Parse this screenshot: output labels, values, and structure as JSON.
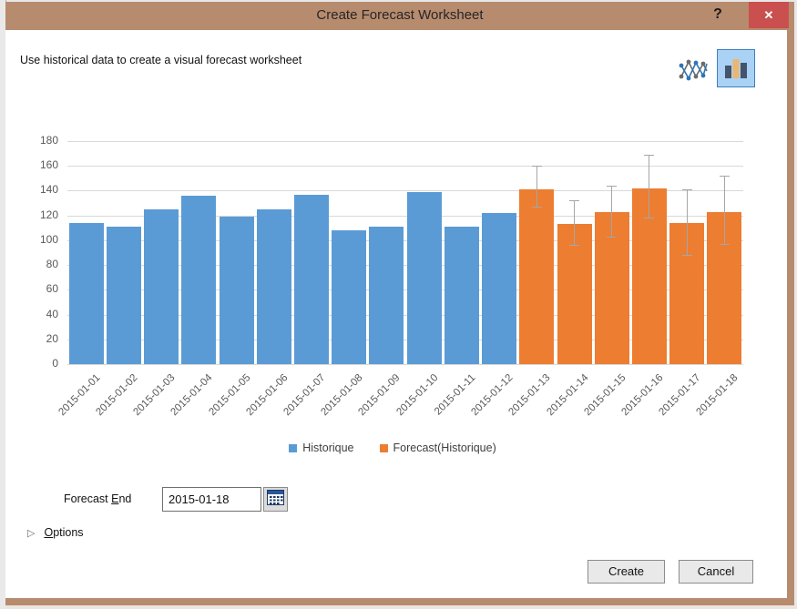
{
  "window": {
    "title": "Create Forecast Worksheet",
    "titlebar_color": "#b78b6e",
    "close_color": "#c9504e"
  },
  "icons": {
    "help": "?",
    "close": "✕",
    "expander": "▷"
  },
  "subtitle": "Use historical data to create a visual forecast worksheet",
  "chart_data": {
    "type": "bar",
    "title": "",
    "categories": [
      "2015-01-01",
      "2015-01-02",
      "2015-01-03",
      "2015-01-04",
      "2015-01-05",
      "2015-01-06",
      "2015-01-07",
      "2015-01-08",
      "2015-01-09",
      "2015-01-10",
      "2015-01-11",
      "2015-01-12",
      "2015-01-13",
      "2015-01-14",
      "2015-01-15",
      "2015-01-16",
      "2015-01-17",
      "2015-01-18"
    ],
    "series": [
      {
        "name": "Historique",
        "color": "#5b9bd5",
        "values": [
          114,
          111,
          125,
          136,
          119,
          125,
          137,
          108,
          111,
          139,
          111,
          122,
          null,
          null,
          null,
          null,
          null,
          null
        ]
      },
      {
        "name": "Forecast(Historique)",
        "color": "#ed7d31",
        "values": [
          null,
          null,
          null,
          null,
          null,
          null,
          null,
          null,
          null,
          null,
          null,
          null,
          141,
          113,
          123,
          142,
          114,
          123
        ],
        "ci_low": [
          null,
          null,
          null,
          null,
          null,
          null,
          null,
          null,
          null,
          null,
          null,
          null,
          127,
          96,
          103,
          118,
          88,
          97
        ],
        "ci_high": [
          null,
          null,
          null,
          null,
          null,
          null,
          null,
          null,
          null,
          null,
          null,
          null,
          160,
          132,
          144,
          169,
          141,
          152
        ]
      }
    ],
    "ylim": [
      0,
      180
    ],
    "ytick_step": 20,
    "grid": true,
    "legend_position": "bottom",
    "gridline_color": "#d9d9d9",
    "axis_label_color": "#595959",
    "error_bar_color": "#a6a6a6"
  },
  "forecast_end": {
    "label_pre": "Forecast ",
    "label_accel": "E",
    "label_rest": "nd",
    "value": "2015-01-18"
  },
  "options": {
    "label_accel": "O",
    "label_rest": "ptions"
  },
  "footer": {
    "create": "Create",
    "cancel": "Cancel"
  }
}
